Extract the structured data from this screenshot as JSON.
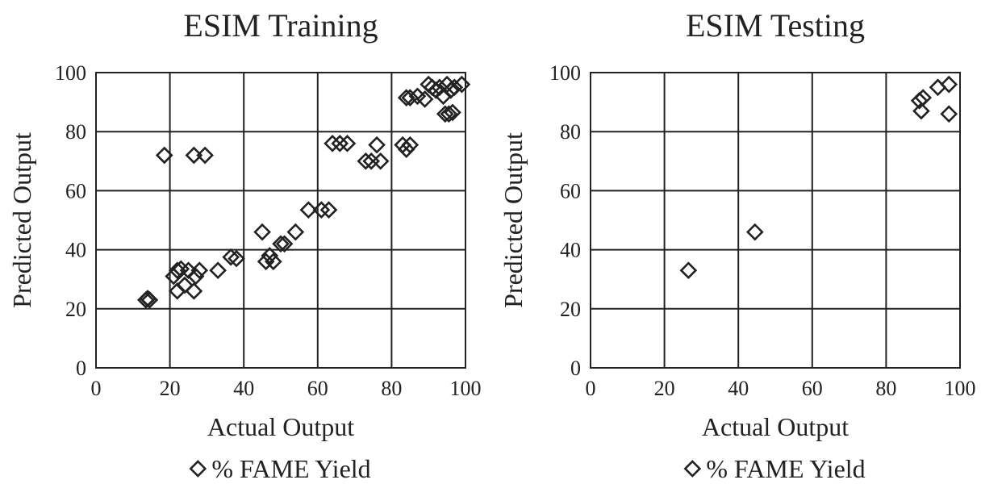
{
  "chart_data": [
    {
      "type": "scatter",
      "title": "ESIM Training",
      "xlabel": "Actual Output",
      "ylabel": "Predicted Output",
      "xlim": [
        0,
        100
      ],
      "ylim": [
        0,
        100
      ],
      "xticks": [
        "0",
        "20",
        "40",
        "60",
        "80",
        "100"
      ],
      "yticks": [
        "0",
        "20",
        "40",
        "60",
        "80",
        "100"
      ],
      "grid": true,
      "legend_position": "bottom",
      "legend_marker": "diamond",
      "series": [
        {
          "name": "% FAME Yield",
          "points": [
            [
              13.5,
              23
            ],
            [
              14,
              23.5
            ],
            [
              14.5,
              23
            ],
            [
              21,
              31
            ],
            [
              22,
              33
            ],
            [
              23,
              33.5
            ],
            [
              25,
              33
            ],
            [
              27,
              31
            ],
            [
              28,
              33
            ],
            [
              24,
              28
            ],
            [
              22,
              26
            ],
            [
              26.5,
              26
            ],
            [
              33,
              33
            ],
            [
              36.5,
              37.5
            ],
            [
              38,
              37
            ],
            [
              45,
              46
            ],
            [
              46,
              36
            ],
            [
              47,
              38
            ],
            [
              48,
              36
            ],
            [
              50,
              42
            ],
            [
              51,
              42
            ],
            [
              54,
              46
            ],
            [
              57.5,
              53.5
            ],
            [
              61,
              53.5
            ],
            [
              63,
              53.5
            ],
            [
              64,
              76
            ],
            [
              66,
              76
            ],
            [
              68,
              76
            ],
            [
              73,
              70
            ],
            [
              74.5,
              70
            ],
            [
              76,
              75.5
            ],
            [
              77,
              70
            ],
            [
              83,
              75.5
            ],
            [
              84,
              74
            ],
            [
              85,
              75.5
            ],
            [
              84,
              91.5
            ],
            [
              85,
              91.5
            ],
            [
              87,
              92
            ],
            [
              89,
              91
            ],
            [
              90,
              96
            ],
            [
              91,
              95
            ],
            [
              92,
              94
            ],
            [
              93,
              95
            ],
            [
              94,
              92
            ],
            [
              95,
              96
            ],
            [
              96,
              94
            ],
            [
              97,
              95
            ],
            [
              99,
              96
            ],
            [
              94.5,
              86
            ],
            [
              95.5,
              86
            ],
            [
              96.5,
              86.5
            ],
            [
              18.5,
              72
            ],
            [
              26.5,
              72
            ],
            [
              29.5,
              72
            ]
          ]
        }
      ]
    },
    {
      "type": "scatter",
      "title": "ESIM Testing",
      "xlabel": "Actual Output",
      "ylabel": "Predicted Output",
      "xlim": [
        0,
        100
      ],
      "ylim": [
        0,
        100
      ],
      "xticks": [
        "0",
        "20",
        "40",
        "60",
        "80",
        "100"
      ],
      "yticks": [
        "0",
        "20",
        "40",
        "60",
        "80",
        "100"
      ],
      "grid": true,
      "legend_position": "bottom",
      "legend_marker": "diamond",
      "series": [
        {
          "name": "% FAME Yield",
          "points": [
            [
              26.5,
              33
            ],
            [
              44.5,
              46
            ],
            [
              89,
              90.5
            ],
            [
              90,
              91.5
            ],
            [
              89.5,
              87
            ],
            [
              94,
              95
            ],
            [
              97,
              96
            ],
            [
              97,
              86
            ]
          ]
        }
      ]
    }
  ]
}
